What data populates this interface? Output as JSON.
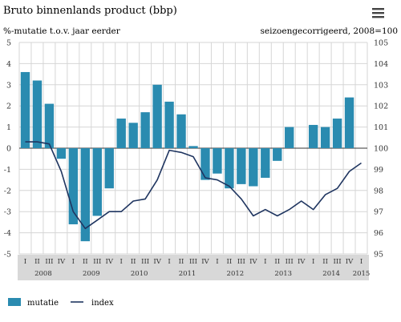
{
  "header": {
    "title": "Bruto binnenlands product (bbp)",
    "left_subtitle": "%-mutatie t.o.v. jaar eerder",
    "right_subtitle": "seizoengecorrigeerd, 2008=100"
  },
  "menu": {
    "icon": "hamburger-menu-icon"
  },
  "colors": {
    "bar": "#2a8bb0",
    "line": "#1f3560",
    "xaxis_band": "#d8d8d8",
    "grid": "#d6d6d6"
  },
  "chart_data": {
    "type": "bar+line",
    "title": "Bruto binnenlands product (bbp)",
    "ylabel_left": "%-mutatie t.o.v. jaar eerder",
    "ylabel_right": "seizoengecorrigeerd, 2008=100",
    "ylim_left": [
      -5,
      5
    ],
    "ylim_right": [
      95,
      105
    ],
    "yticks_left": [
      "5",
      "4",
      "3",
      "2",
      "1",
      "0",
      "-1",
      "-2",
      "-3",
      "-4",
      "-5"
    ],
    "yticks_right": [
      "105",
      "104",
      "103",
      "102",
      "101",
      "100",
      "99",
      "98",
      "97",
      "96",
      "95"
    ],
    "categories": [
      "I",
      "II",
      "III",
      "IV",
      "I",
      "II",
      "III",
      "IV",
      "I",
      "II",
      "III",
      "IV",
      "I",
      "II",
      "III",
      "IV",
      "I",
      "II",
      "III",
      "IV",
      "I",
      "II",
      "III",
      "IV",
      "I",
      "II",
      "III",
      "IV",
      "I"
    ],
    "years": [
      {
        "label": "2008",
        "start": 0,
        "count": 4
      },
      {
        "label": "2009",
        "start": 4,
        "count": 4
      },
      {
        "label": "2010",
        "start": 8,
        "count": 4
      },
      {
        "label": "2011",
        "start": 12,
        "count": 4
      },
      {
        "label": "2012",
        "start": 16,
        "count": 4
      },
      {
        "label": "2013",
        "start": 20,
        "count": 4
      },
      {
        "label": "2014",
        "start": 24,
        "count": 4
      },
      {
        "label": "2015",
        "start": 28,
        "count": 1
      }
    ],
    "series": [
      {
        "name": "mutatie",
        "type": "bar",
        "axis": "left",
        "values": [
          3.6,
          3.2,
          2.1,
          -0.5,
          -3.6,
          -4.4,
          -3.2,
          -1.9,
          1.4,
          1.2,
          1.7,
          3.0,
          2.2,
          1.6,
          0.1,
          -1.5,
          -1.2,
          -1.9,
          -1.7,
          -1.8,
          -1.4,
          -0.6,
          1.0,
          null,
          1.1,
          1.0,
          1.4,
          2.4,
          null
        ]
      },
      {
        "name": "index",
        "type": "line",
        "axis": "right",
        "values": [
          100.3,
          100.3,
          100.2,
          98.9,
          97.0,
          96.2,
          96.6,
          97.0,
          97.0,
          97.5,
          97.6,
          98.5,
          99.9,
          99.8,
          99.6,
          98.6,
          98.5,
          98.2,
          97.6,
          96.8,
          97.1,
          96.8,
          97.1,
          97.5,
          97.1,
          97.8,
          98.1,
          98.9,
          99.3
        ]
      }
    ],
    "legend": [
      "mutatie",
      "index"
    ],
    "legend_position": "bottom-left",
    "grid": true
  }
}
